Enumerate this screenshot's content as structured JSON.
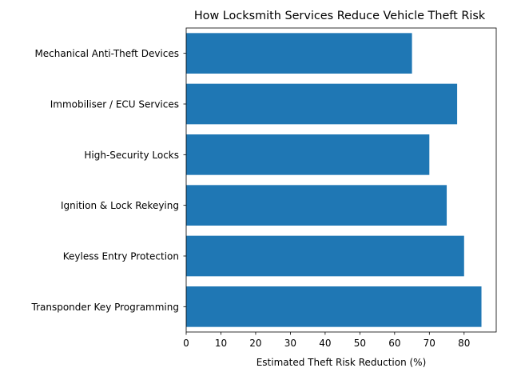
{
  "chart_data": {
    "type": "bar",
    "orientation": "horizontal",
    "title": "How Locksmith Services Reduce Vehicle Theft Risk",
    "xlabel": "Estimated Theft Risk Reduction (%)",
    "ylabel": "",
    "categories": [
      "Transponder Key Programming",
      "Keyless Entry Protection",
      "Ignition & Lock Rekeying",
      "High-Security Locks",
      "Immobiliser / ECU Services",
      "Mechanical Anti-Theft Devices"
    ],
    "values": [
      85,
      80,
      75,
      70,
      78,
      65
    ],
    "xlim": [
      0,
      89.25
    ],
    "xticks": [
      0,
      10,
      20,
      30,
      40,
      50,
      60,
      70,
      80
    ],
    "bar_color": "#1f77b4",
    "grid": false
  }
}
